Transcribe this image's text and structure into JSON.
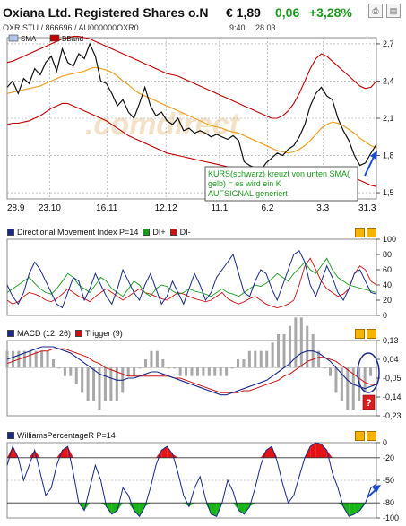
{
  "header": {
    "title": "Oxiana Ltd. Registered Shares o.N",
    "price": "€ 1,89",
    "change": "0,06",
    "change_pct": "+3,28%",
    "ticker_line": "OXR.STU  /  866696  /  AU000000OXR0",
    "time": "9:40",
    "date": "28.03",
    "icons": [
      "print-icon",
      "news-icon"
    ]
  },
  "colors": {
    "price_line": "#111111",
    "sma": "#f0a020",
    "bollinger": "#c00000",
    "dmi_index": "#1a2a8a",
    "di_plus": "#1a9a1a",
    "di_minus": "#d01010",
    "macd": "#1a2a8a",
    "trigger": "#d01010",
    "williams": "#1a2a8a",
    "positive": "#1a9a1a",
    "annotation_bg": "#ffffff"
  },
  "chart_data": [
    {
      "type": "line",
      "legend": [
        "SMA",
        "BBand"
      ],
      "x_ticks": [
        "28.9",
        "23.10",
        "16.11",
        "12.12",
        "11.1",
        "6.2",
        "3.3",
        "31.3"
      ],
      "y_ticks": [
        "2,7",
        "2,4",
        "2,1",
        "1,8",
        "1,5"
      ],
      "ylim": [
        1.45,
        2.75
      ],
      "watermark": ".comdirect",
      "annotation": "KURS(schwarz) kreuzt von unten SMA(gelb) = es wird ein KAUFSIGNAL generiert",
      "series": [
        {
          "name": "Kurs",
          "values": [
            2.35,
            2.4,
            2.3,
            2.42,
            2.38,
            2.5,
            2.45,
            2.55,
            2.6,
            2.48,
            2.66,
            2.55,
            2.52,
            2.62,
            2.58,
            2.7,
            2.6,
            2.4,
            2.38,
            2.3,
            2.2,
            2.25,
            2.15,
            2.1,
            2.22,
            2.35,
            2.2,
            2.12,
            2.15,
            2.08,
            2.05,
            2.1,
            2.0,
            2.02,
            1.98,
            2.0,
            1.98,
            1.95,
            1.97,
            1.95,
            1.93,
            1.96,
            1.92,
            1.75,
            1.72,
            1.7,
            1.68,
            1.74,
            1.78,
            1.82,
            1.8,
            1.85,
            1.88,
            1.95,
            2.05,
            2.2,
            2.3,
            2.35,
            2.28,
            2.25,
            2.1,
            2.0,
            1.92,
            1.8,
            1.72,
            1.74,
            1.82,
            1.89
          ]
        },
        {
          "name": "SMA",
          "values": [
            2.3,
            2.31,
            2.32,
            2.33,
            2.34,
            2.35,
            2.36,
            2.38,
            2.4,
            2.42,
            2.44,
            2.45,
            2.46,
            2.47,
            2.48,
            2.5,
            2.51,
            2.5,
            2.49,
            2.47,
            2.44,
            2.4,
            2.37,
            2.33,
            2.3,
            2.28,
            2.26,
            2.24,
            2.22,
            2.2,
            2.18,
            2.16,
            2.14,
            2.12,
            2.1,
            2.08,
            2.06,
            2.04,
            2.03,
            2.02,
            2.0,
            1.99,
            1.98,
            1.96,
            1.94,
            1.92,
            1.9,
            1.88,
            1.86,
            1.84,
            1.83,
            1.82,
            1.83,
            1.85,
            1.88,
            1.92,
            1.97,
            2.02,
            2.05,
            2.07,
            2.06,
            2.04,
            2.01,
            1.98,
            1.94,
            1.91,
            1.88,
            1.86
          ]
        },
        {
          "name": "BBand upper",
          "values": [
            2.55,
            2.56,
            2.58,
            2.6,
            2.62,
            2.64,
            2.66,
            2.68,
            2.7,
            2.72,
            2.74,
            2.75,
            2.76,
            2.76,
            2.75,
            2.74,
            2.72,
            2.7,
            2.68,
            2.66,
            2.64,
            2.62,
            2.6,
            2.58,
            2.56,
            2.54,
            2.52,
            2.5,
            2.48,
            2.46,
            2.45,
            2.44,
            2.42,
            2.4,
            2.38,
            2.36,
            2.34,
            2.32,
            2.3,
            2.28,
            2.26,
            2.24,
            2.22,
            2.2,
            2.18,
            2.16,
            2.14,
            2.12,
            2.1,
            2.1,
            2.12,
            2.16,
            2.22,
            2.3,
            2.4,
            2.5,
            2.58,
            2.62,
            2.6,
            2.56,
            2.52,
            2.48,
            2.44,
            2.4,
            2.36,
            2.34,
            2.35,
            2.4
          ]
        },
        {
          "name": "BBand lower",
          "values": [
            2.05,
            2.06,
            2.06,
            2.07,
            2.08,
            2.1,
            2.12,
            2.15,
            2.18,
            2.2,
            2.22,
            2.22,
            2.2,
            2.18,
            2.16,
            2.14,
            2.12,
            2.1,
            2.08,
            2.05,
            2.02,
            1.99,
            1.96,
            1.94,
            1.92,
            1.9,
            1.88,
            1.86,
            1.84,
            1.82,
            1.81,
            1.8,
            1.79,
            1.78,
            1.77,
            1.76,
            1.75,
            1.74,
            1.73,
            1.72,
            1.71,
            1.7,
            1.69,
            1.67,
            1.66,
            1.65,
            1.64,
            1.63,
            1.62,
            1.62,
            1.6,
            1.58,
            1.56,
            1.55,
            1.54,
            1.54,
            1.55,
            1.56,
            1.58,
            1.6,
            1.62,
            1.63,
            1.63,
            1.62,
            1.6,
            1.58,
            1.56,
            1.55
          ]
        }
      ]
    },
    {
      "type": "line",
      "title": "Directional Movement Index P=14",
      "legend": [
        "DI+",
        "DI-"
      ],
      "y_ticks": [
        "100",
        "80",
        "60",
        "40",
        "20",
        "0"
      ],
      "ylim": [
        0,
        100
      ],
      "series": [
        {
          "name": "Index",
          "values": [
            40,
            25,
            15,
            30,
            55,
            70,
            60,
            45,
            30,
            15,
            10,
            30,
            50,
            45,
            20,
            35,
            55,
            40,
            25,
            15,
            35,
            60,
            45,
            30,
            20,
            40,
            55,
            35,
            15,
            25,
            45,
            30,
            15,
            35,
            55,
            40,
            20,
            30,
            50,
            60,
            70,
            80,
            55,
            30,
            25,
            45,
            60,
            55,
            35,
            20,
            40,
            60,
            80,
            85,
            70,
            40,
            25,
            45,
            65,
            50,
            30,
            20,
            35,
            55,
            60,
            45,
            30,
            28
          ]
        },
        {
          "name": "DI+",
          "values": [
            30,
            35,
            40,
            45,
            50,
            42,
            35,
            30,
            28,
            35,
            45,
            55,
            50,
            40,
            35,
            30,
            40,
            50,
            45,
            35,
            30,
            25,
            35,
            45,
            40,
            30,
            25,
            35,
            40,
            38,
            32,
            28,
            30,
            35,
            32,
            30,
            28,
            25,
            30,
            35,
            30,
            28,
            25,
            30,
            35,
            40,
            38,
            42,
            48,
            55,
            50,
            45,
            55,
            62,
            70,
            60,
            55,
            65,
            75,
            60,
            50,
            45,
            40,
            38,
            36,
            34,
            32,
            30
          ]
        },
        {
          "name": "DI-",
          "values": [
            20,
            15,
            18,
            25,
            30,
            28,
            25,
            20,
            18,
            22,
            28,
            35,
            30,
            25,
            22,
            18,
            25,
            30,
            35,
            30,
            25,
            20,
            25,
            30,
            35,
            30,
            28,
            25,
            22,
            20,
            25,
            30,
            28,
            25,
            22,
            20,
            18,
            20,
            25,
            30,
            22,
            18,
            15,
            18,
            22,
            25,
            20,
            15,
            12,
            10,
            12,
            15,
            20,
            40,
            65,
            75,
            60,
            45,
            35,
            30,
            25,
            28,
            35,
            55,
            65,
            60,
            45,
            40
          ]
        }
      ]
    },
    {
      "type": "line",
      "title": "MACD (12, 26)",
      "legend": [
        "Trigger (9)"
      ],
      "y_ticks": [
        "0,13",
        "0,04",
        "-0,05",
        "-0,14",
        "-0,23"
      ],
      "ylim": [
        -0.23,
        0.13
      ],
      "series": [
        {
          "name": "MACD",
          "values": [
            0.04,
            0.05,
            0.06,
            0.07,
            0.08,
            0.09,
            0.1,
            0.1,
            0.1,
            0.09,
            0.08,
            0.07,
            0.05,
            0.03,
            0.01,
            -0.01,
            -0.03,
            -0.04,
            -0.05,
            -0.06,
            -0.06,
            -0.05,
            -0.05,
            -0.04,
            -0.03,
            -0.02,
            -0.02,
            -0.03,
            -0.04,
            -0.05,
            -0.06,
            -0.07,
            -0.08,
            -0.09,
            -0.1,
            -0.11,
            -0.12,
            -0.13,
            -0.13,
            -0.12,
            -0.11,
            -0.1,
            -0.09,
            -0.08,
            -0.07,
            -0.06,
            -0.04,
            -0.02,
            0.0,
            0.02,
            0.05,
            0.07,
            0.08,
            0.08,
            0.07,
            0.05,
            0.03,
            0.0,
            -0.03,
            -0.06,
            -0.08,
            -0.09,
            -0.1,
            -0.09,
            -0.08
          ]
        },
        {
          "name": "Trigger (9)",
          "values": [
            0.02,
            0.03,
            0.04,
            0.05,
            0.06,
            0.07,
            0.08,
            0.08,
            0.09,
            0.09,
            0.09,
            0.08,
            0.07,
            0.06,
            0.05,
            0.03,
            0.02,
            0.0,
            -0.01,
            -0.02,
            -0.03,
            -0.04,
            -0.04,
            -0.04,
            -0.04,
            -0.04,
            -0.04,
            -0.04,
            -0.04,
            -0.05,
            -0.05,
            -0.06,
            -0.07,
            -0.08,
            -0.09,
            -0.1,
            -0.11,
            -0.12,
            -0.12,
            -0.12,
            -0.12,
            -0.11,
            -0.11,
            -0.1,
            -0.09,
            -0.08,
            -0.07,
            -0.06,
            -0.04,
            -0.03,
            -0.01,
            0.01,
            0.03,
            0.04,
            0.05,
            0.05,
            0.04,
            0.03,
            0.01,
            -0.01,
            -0.03,
            -0.05,
            -0.07,
            -0.08,
            -0.08
          ]
        }
      ]
    },
    {
      "type": "line",
      "title": "WilliamsPercentageR P=14",
      "y_ticks": [
        "0",
        "-20",
        "-50",
        "-80",
        "-100"
      ],
      "ylim": [
        -100,
        0
      ],
      "series": [
        {
          "name": "WilliamsPercentageR",
          "values": [
            -30,
            -5,
            -20,
            -50,
            -30,
            -10,
            -40,
            -70,
            -60,
            -30,
            -10,
            -5,
            -40,
            -80,
            -90,
            -60,
            -30,
            -50,
            -85,
            -95,
            -90,
            -60,
            -70,
            -90,
            -98,
            -85,
            -60,
            -30,
            -10,
            -5,
            -15,
            -40,
            -70,
            -85,
            -60,
            -45,
            -75,
            -95,
            -98,
            -80,
            -50,
            -65,
            -90,
            -95,
            -85,
            -60,
            -30,
            -10,
            -5,
            -25,
            -55,
            -80,
            -70,
            -45,
            -20,
            -5,
            0,
            -2,
            -10,
            -40,
            -60,
            -85,
            -98,
            -95,
            -90,
            -80,
            -60,
            -55
          ]
        }
      ]
    }
  ]
}
